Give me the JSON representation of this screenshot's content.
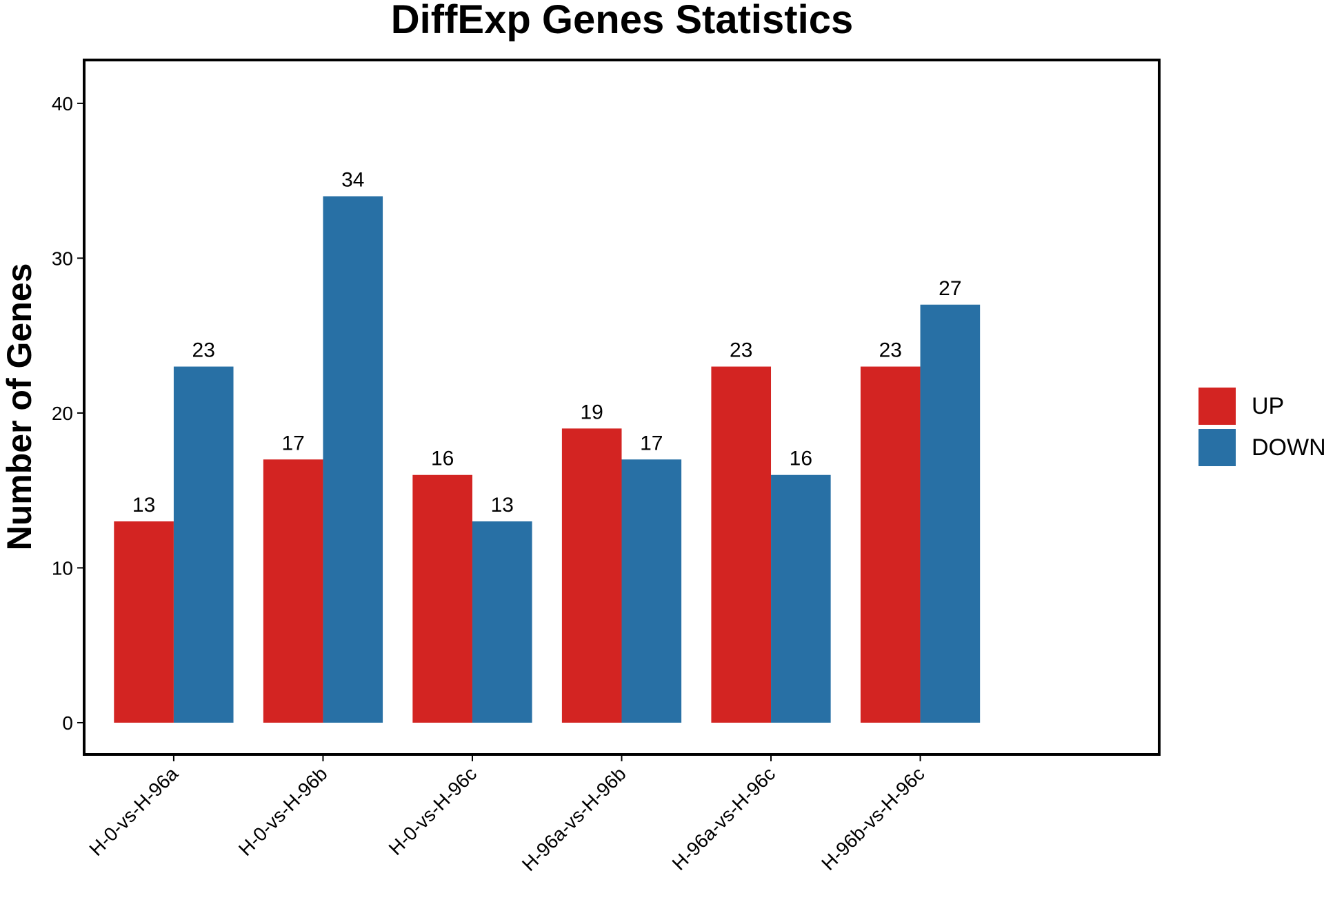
{
  "chart_data": {
    "type": "bar",
    "title": "DiffExp Genes Statistics",
    "y_label": "Number of Genes",
    "categories": [
      "H-0-vs-H-96a",
      "H-0-vs-H-96b",
      "H-0-vs-H-96c",
      "H-96a-vs-H-96b",
      "H-96a-vs-H-96c",
      "H-96b-vs-H-96c"
    ],
    "series": [
      {
        "name": "UP",
        "color": "#d32422",
        "values": [
          13,
          17,
          16,
          19,
          23,
          23
        ]
      },
      {
        "name": "DOWN",
        "color": "#2870a5",
        "values": [
          23,
          34,
          13,
          17,
          16,
          27
        ]
      }
    ],
    "ylim": [
      -2.05,
      42.8
    ],
    "yticks": [
      0,
      10,
      20,
      30,
      40
    ],
    "grid": false,
    "legend": "right",
    "data_labels": true
  }
}
